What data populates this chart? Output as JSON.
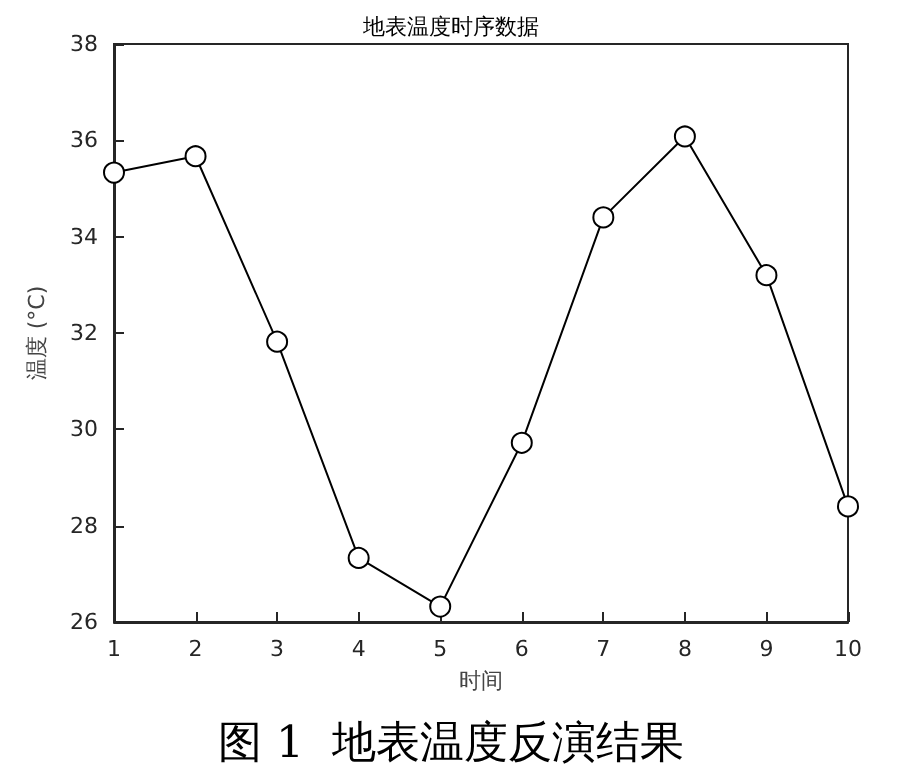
{
  "chart_data": {
    "type": "line",
    "title": "地表温度时序数据",
    "xlabel": "时间",
    "ylabel": "温度 (°C)",
    "annotations": [
      "图 1  地表温度反演结果"
    ],
    "x": [
      1,
      2,
      3,
      4,
      5,
      6,
      7,
      8,
      9,
      10
    ],
    "series": [
      {
        "color": "#000000",
        "values": [
          35.33,
          35.67,
          31.82,
          27.33,
          26.32,
          29.72,
          34.4,
          36.08,
          33.2,
          28.4
        ]
      }
    ],
    "xlim": [
      1,
      10
    ],
    "xticks": [
      1,
      2,
      3,
      4,
      5,
      6,
      7,
      8,
      9,
      10
    ],
    "ylim": [
      26,
      38
    ],
    "yticks": [
      26,
      28,
      30,
      32,
      34,
      36,
      38
    ],
    "grid": false,
    "marker": "circle",
    "line_style": "solid"
  }
}
